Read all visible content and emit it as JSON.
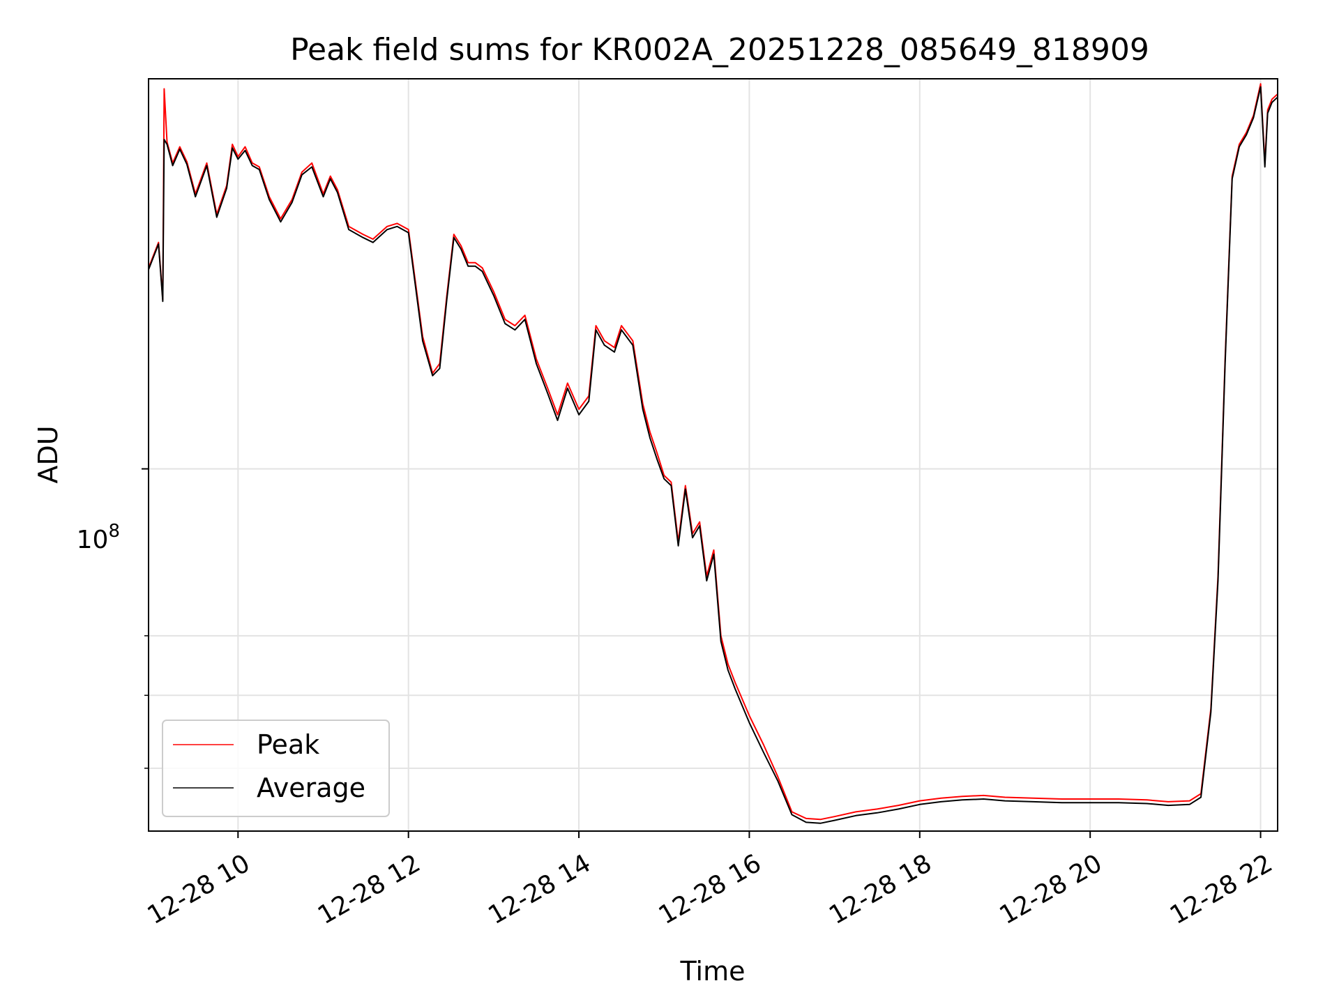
{
  "chart_data": {
    "type": "line",
    "title": "Peak field sums for KR002A_20251228_085649_818909",
    "xlabel": "Time",
    "ylabel": "ADU",
    "y_scale": "log",
    "y_tick_label": {
      "base": "10",
      "exponent": "8"
    },
    "xlim": [
      "12-28 08:57",
      "12-28 22:12"
    ],
    "ylim": [
      33000000,
      330000000
    ],
    "x_tick_labels": [
      "12-28 10",
      "12-28 12",
      "12-28 14",
      "12-28 16",
      "12-28 18",
      "12-28 20",
      "12-28 22"
    ],
    "grid": true,
    "legend_position": "lower-left",
    "series": [
      {
        "name": "Peak",
        "color": "#ff0000",
        "x": [
          "12-28 08:57",
          "12-28 09:04",
          "12-28 09:07",
          "12-28 09:08",
          "12-28 09:10",
          "12-28 09:14",
          "12-28 09:19",
          "12-28 09:24",
          "12-28 09:30",
          "12-28 09:38",
          "12-28 09:45",
          "12-28 09:52",
          "12-28 09:56",
          "12-28 10:00",
          "12-28 10:05",
          "12-28 10:10",
          "12-28 10:15",
          "12-28 10:22",
          "12-28 10:30",
          "12-28 10:38",
          "12-28 10:45",
          "12-28 10:52",
          "12-28 11:00",
          "12-28 11:05",
          "12-28 11:10",
          "12-28 11:18",
          "12-28 11:28",
          "12-28 11:35",
          "12-28 11:45",
          "12-28 11:52",
          "12-28 12:00",
          "12-28 12:10",
          "12-28 12:17",
          "12-28 12:22",
          "12-28 12:27",
          "12-28 12:32",
          "12-28 12:37",
          "12-28 12:42",
          "12-28 12:47",
          "12-28 12:52",
          "12-28 13:00",
          "12-28 13:08",
          "12-28 13:15",
          "12-28 13:22",
          "12-28 13:30",
          "12-28 13:38",
          "12-28 13:45",
          "12-28 13:52",
          "12-28 14:00",
          "12-28 14:07",
          "12-28 14:12",
          "12-28 14:18",
          "12-28 14:25",
          "12-28 14:30",
          "12-28 14:38",
          "12-28 14:45",
          "12-28 14:50",
          "12-28 14:55",
          "12-28 15:00",
          "12-28 15:05",
          "12-28 15:10",
          "12-28 15:15",
          "12-28 15:20",
          "12-28 15:25",
          "12-28 15:30",
          "12-28 15:35",
          "12-28 15:40",
          "12-28 15:45",
          "12-28 15:50",
          "12-28 16:00",
          "12-28 16:10",
          "12-28 16:20",
          "12-28 16:30",
          "12-28 16:40",
          "12-28 16:50",
          "12-28 17:00",
          "12-28 17:15",
          "12-28 17:30",
          "12-28 17:45",
          "12-28 18:00",
          "12-28 18:15",
          "12-28 18:30",
          "12-28 18:45",
          "12-28 19:00",
          "12-28 19:20",
          "12-28 19:40",
          "12-28 20:00",
          "12-28 20:20",
          "12-28 20:40",
          "12-28 20:55",
          "12-28 21:10",
          "12-28 21:18",
          "12-28 21:25",
          "12-28 21:30",
          "12-28 21:35",
          "12-28 21:40",
          "12-28 21:45",
          "12-28 21:50",
          "12-28 21:55",
          "12-28 22:00",
          "12-28 22:03",
          "12-28 22:05",
          "12-28 22:08",
          "12-28 22:12"
        ],
        "y": [
          185000000,
          200000000,
          168000000,
          320000000,
          272000000,
          255000000,
          268000000,
          256000000,
          232000000,
          255000000,
          218000000,
          238000000,
          270000000,
          260000000,
          268000000,
          255000000,
          252000000,
          230000000,
          215000000,
          228000000,
          248000000,
          255000000,
          232000000,
          245000000,
          235000000,
          210000000,
          205000000,
          202000000,
          210000000,
          212000000,
          208000000,
          150000000,
          134000000,
          138000000,
          170000000,
          205000000,
          198000000,
          188000000,
          188000000,
          185000000,
          172000000,
          158000000,
          155000000,
          160000000,
          140000000,
          128000000,
          118000000,
          130000000,
          120000000,
          125000000,
          155000000,
          148000000,
          145000000,
          155000000,
          148000000,
          122000000,
          112000000,
          105000000,
          98000000,
          96000000,
          80000000,
          95000000,
          82000000,
          85000000,
          72000000,
          78000000,
          60000000,
          55000000,
          52000000,
          47000000,
          43000000,
          39000000,
          35000000,
          34300000,
          34200000,
          34500000,
          35000000,
          35300000,
          35700000,
          36200000,
          36500000,
          36700000,
          36800000,
          36600000,
          36500000,
          36400000,
          36400000,
          36400000,
          36300000,
          36100000,
          36200000,
          37000000,
          48000000,
          72000000,
          140000000,
          245000000,
          270000000,
          280000000,
          295000000,
          325000000,
          255000000,
          300000000,
          310000000,
          315000000
        ]
      },
      {
        "name": "Average",
        "color": "#000000",
        "x": [
          "12-28 08:57",
          "12-28 09:04",
          "12-28 09:07",
          "12-28 09:08",
          "12-28 09:10",
          "12-28 09:14",
          "12-28 09:19",
          "12-28 09:24",
          "12-28 09:30",
          "12-28 09:38",
          "12-28 09:45",
          "12-28 09:52",
          "12-28 09:56",
          "12-28 10:00",
          "12-28 10:05",
          "12-28 10:10",
          "12-28 10:15",
          "12-28 10:22",
          "12-28 10:30",
          "12-28 10:38",
          "12-28 10:45",
          "12-28 10:52",
          "12-28 11:00",
          "12-28 11:05",
          "12-28 11:10",
          "12-28 11:18",
          "12-28 11:28",
          "12-28 11:35",
          "12-28 11:45",
          "12-28 11:52",
          "12-28 12:00",
          "12-28 12:10",
          "12-28 12:17",
          "12-28 12:22",
          "12-28 12:27",
          "12-28 12:32",
          "12-28 12:37",
          "12-28 12:42",
          "12-28 12:47",
          "12-28 12:52",
          "12-28 13:00",
          "12-28 13:08",
          "12-28 13:15",
          "12-28 13:22",
          "12-28 13:30",
          "12-28 13:38",
          "12-28 13:45",
          "12-28 13:52",
          "12-28 14:00",
          "12-28 14:07",
          "12-28 14:12",
          "12-28 14:18",
          "12-28 14:25",
          "12-28 14:30",
          "12-28 14:38",
          "12-28 14:45",
          "12-28 14:50",
          "12-28 14:55",
          "12-28 15:00",
          "12-28 15:05",
          "12-28 15:10",
          "12-28 15:15",
          "12-28 15:20",
          "12-28 15:25",
          "12-28 15:30",
          "12-28 15:35",
          "12-28 15:40",
          "12-28 15:45",
          "12-28 15:50",
          "12-28 16:00",
          "12-28 16:10",
          "12-28 16:20",
          "12-28 16:30",
          "12-28 16:40",
          "12-28 16:50",
          "12-28 17:00",
          "12-28 17:15",
          "12-28 17:30",
          "12-28 17:45",
          "12-28 18:00",
          "12-28 18:15",
          "12-28 18:30",
          "12-28 18:45",
          "12-28 19:00",
          "12-28 19:20",
          "12-28 19:40",
          "12-28 20:00",
          "12-28 20:20",
          "12-28 20:40",
          "12-28 20:55",
          "12-28 21:10",
          "12-28 21:18",
          "12-28 21:25",
          "12-28 21:30",
          "12-28 21:35",
          "12-28 21:40",
          "12-28 21:45",
          "12-28 21:50",
          "12-28 21:55",
          "12-28 22:00",
          "12-28 22:03",
          "12-28 22:05",
          "12-28 22:08",
          "12-28 22:12"
        ],
        "y": [
          184000000,
          199000000,
          167000000,
          274000000,
          270000000,
          253000000,
          266000000,
          254000000,
          230000000,
          253000000,
          216000000,
          236000000,
          267000000,
          258000000,
          265000000,
          253000000,
          250000000,
          228000000,
          213000000,
          226000000,
          246000000,
          252000000,
          230000000,
          243000000,
          233000000,
          208000000,
          203000000,
          200000000,
          208000000,
          210000000,
          206000000,
          148000000,
          133000000,
          136000000,
          168000000,
          203000000,
          196000000,
          186000000,
          186000000,
          183000000,
          170000000,
          156000000,
          153000000,
          158000000,
          138000000,
          126000000,
          116000000,
          128000000,
          118000000,
          123000000,
          153000000,
          146000000,
          143000000,
          153000000,
          146000000,
          120000000,
          110000000,
          103000000,
          97000000,
          95000000,
          79000000,
          94000000,
          81000000,
          84000000,
          71000000,
          77000000,
          59000000,
          54000000,
          51000000,
          46000000,
          42000000,
          38500000,
          34700000,
          33900000,
          33800000,
          34100000,
          34600000,
          34900000,
          35300000,
          35800000,
          36100000,
          36300000,
          36400000,
          36200000,
          36100000,
          36000000,
          36000000,
          36000000,
          35900000,
          35700000,
          35800000,
          36600000,
          47500000,
          71000000,
          138000000,
          243000000,
          268000000,
          278000000,
          293000000,
          322000000,
          252000000,
          297000000,
          307000000,
          312000000
        ]
      }
    ]
  }
}
